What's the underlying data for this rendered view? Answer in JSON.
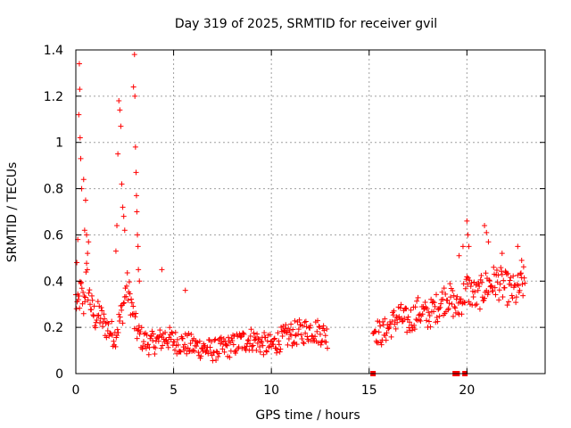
{
  "chart_data": {
    "type": "scatter",
    "title": "Day 319 of 2025, SRMTID for receiver gvil",
    "xlabel": "GPS time / hours",
    "ylabel": "SRMTID / TECUs",
    "xlim": [
      0,
      24
    ],
    "ylim": [
      0,
      1.4
    ],
    "grid": true,
    "x_ticks": [
      0,
      5,
      10,
      15,
      20
    ],
    "y_ticks": [
      0,
      0.2,
      0.4,
      0.6,
      0.8,
      1,
      1.2,
      1.4
    ],
    "x_tick_labels": [
      "0",
      "5",
      "10",
      "15",
      "20"
    ],
    "y_tick_labels": [
      "0",
      "0.2",
      "0.4",
      "0.6",
      "0.8",
      "1",
      "1.2",
      "1.4"
    ],
    "marker": "plus",
    "series": [
      {
        "name": "SRMTID",
        "color": "#ff0000",
        "trend": [
          [
            0.0,
            0.32
          ],
          [
            0.1,
            0.28
          ],
          [
            0.25,
            0.36
          ],
          [
            0.4,
            0.3
          ],
          [
            0.55,
            0.42
          ],
          [
            0.7,
            0.33
          ],
          [
            0.85,
            0.27
          ],
          [
            1.0,
            0.24
          ],
          [
            1.2,
            0.26
          ],
          [
            1.4,
            0.22
          ],
          [
            1.6,
            0.2
          ],
          [
            1.8,
            0.18
          ],
          [
            2.0,
            0.16
          ],
          [
            2.2,
            0.22
          ],
          [
            2.4,
            0.28
          ],
          [
            2.6,
            0.38
          ],
          [
            2.8,
            0.32
          ],
          [
            3.0,
            0.22
          ],
          [
            3.2,
            0.17
          ],
          [
            3.5,
            0.14
          ],
          [
            3.8,
            0.13
          ],
          [
            4.2,
            0.14
          ],
          [
            4.6,
            0.16
          ],
          [
            5.0,
            0.14
          ],
          [
            5.5,
            0.13
          ],
          [
            6.0,
            0.12
          ],
          [
            6.5,
            0.11
          ],
          [
            7.0,
            0.1
          ],
          [
            7.5,
            0.11
          ],
          [
            8.0,
            0.12
          ],
          [
            8.5,
            0.14
          ],
          [
            9.0,
            0.15
          ],
          [
            9.5,
            0.13
          ],
          [
            10.0,
            0.12
          ],
          [
            10.5,
            0.15
          ],
          [
            11.0,
            0.17
          ],
          [
            11.5,
            0.18
          ],
          [
            12.0,
            0.19
          ],
          [
            12.5,
            0.18
          ],
          [
            12.9,
            0.16
          ],
          [
            15.2,
            0.2
          ],
          [
            15.6,
            0.17
          ],
          [
            16.0,
            0.2
          ],
          [
            16.5,
            0.25
          ],
          [
            17.0,
            0.22
          ],
          [
            17.5,
            0.27
          ],
          [
            18.0,
            0.25
          ],
          [
            18.5,
            0.29
          ],
          [
            19.0,
            0.34
          ],
          [
            19.5,
            0.28
          ],
          [
            20.0,
            0.37
          ],
          [
            20.5,
            0.33
          ],
          [
            21.0,
            0.38
          ],
          [
            21.5,
            0.4
          ],
          [
            22.0,
            0.37
          ],
          [
            22.5,
            0.35
          ],
          [
            23.0,
            0.4
          ]
        ],
        "spikes": [
          [
            0.05,
            0.48
          ],
          [
            0.1,
            0.58
          ],
          [
            0.15,
            1.12
          ],
          [
            0.18,
            1.34
          ],
          [
            0.2,
            1.23
          ],
          [
            0.22,
            1.02
          ],
          [
            0.25,
            0.93
          ],
          [
            0.3,
            0.8
          ],
          [
            0.4,
            0.84
          ],
          [
            0.45,
            0.62
          ],
          [
            0.5,
            0.75
          ],
          [
            0.55,
            0.6
          ],
          [
            0.6,
            0.52
          ],
          [
            0.65,
            0.57
          ],
          [
            2.05,
            0.53
          ],
          [
            2.1,
            0.64
          ],
          [
            2.15,
            0.95
          ],
          [
            2.2,
            1.18
          ],
          [
            2.25,
            1.14
          ],
          [
            2.3,
            1.07
          ],
          [
            2.35,
            0.82
          ],
          [
            2.4,
            0.72
          ],
          [
            2.45,
            0.68
          ],
          [
            2.5,
            0.62
          ],
          [
            2.95,
            1.24
          ],
          [
            3.0,
            1.38
          ],
          [
            3.02,
            1.2
          ],
          [
            3.05,
            0.98
          ],
          [
            3.08,
            0.87
          ],
          [
            3.1,
            0.77
          ],
          [
            3.12,
            0.7
          ],
          [
            3.15,
            0.6
          ],
          [
            3.18,
            0.55
          ],
          [
            3.2,
            0.45
          ],
          [
            3.25,
            0.4
          ],
          [
            4.4,
            0.45
          ],
          [
            5.6,
            0.36
          ],
          [
            19.6,
            0.51
          ],
          [
            19.8,
            0.55
          ],
          [
            20.0,
            0.66
          ],
          [
            20.05,
            0.6
          ],
          [
            20.1,
            0.55
          ],
          [
            20.9,
            0.64
          ],
          [
            21.0,
            0.61
          ],
          [
            21.1,
            0.57
          ],
          [
            21.8,
            0.52
          ],
          [
            22.6,
            0.55
          ],
          [
            22.8,
            0.49
          ]
        ],
        "zeros": [
          15.2,
          19.4,
          19.5,
          19.9
        ]
      }
    ]
  }
}
